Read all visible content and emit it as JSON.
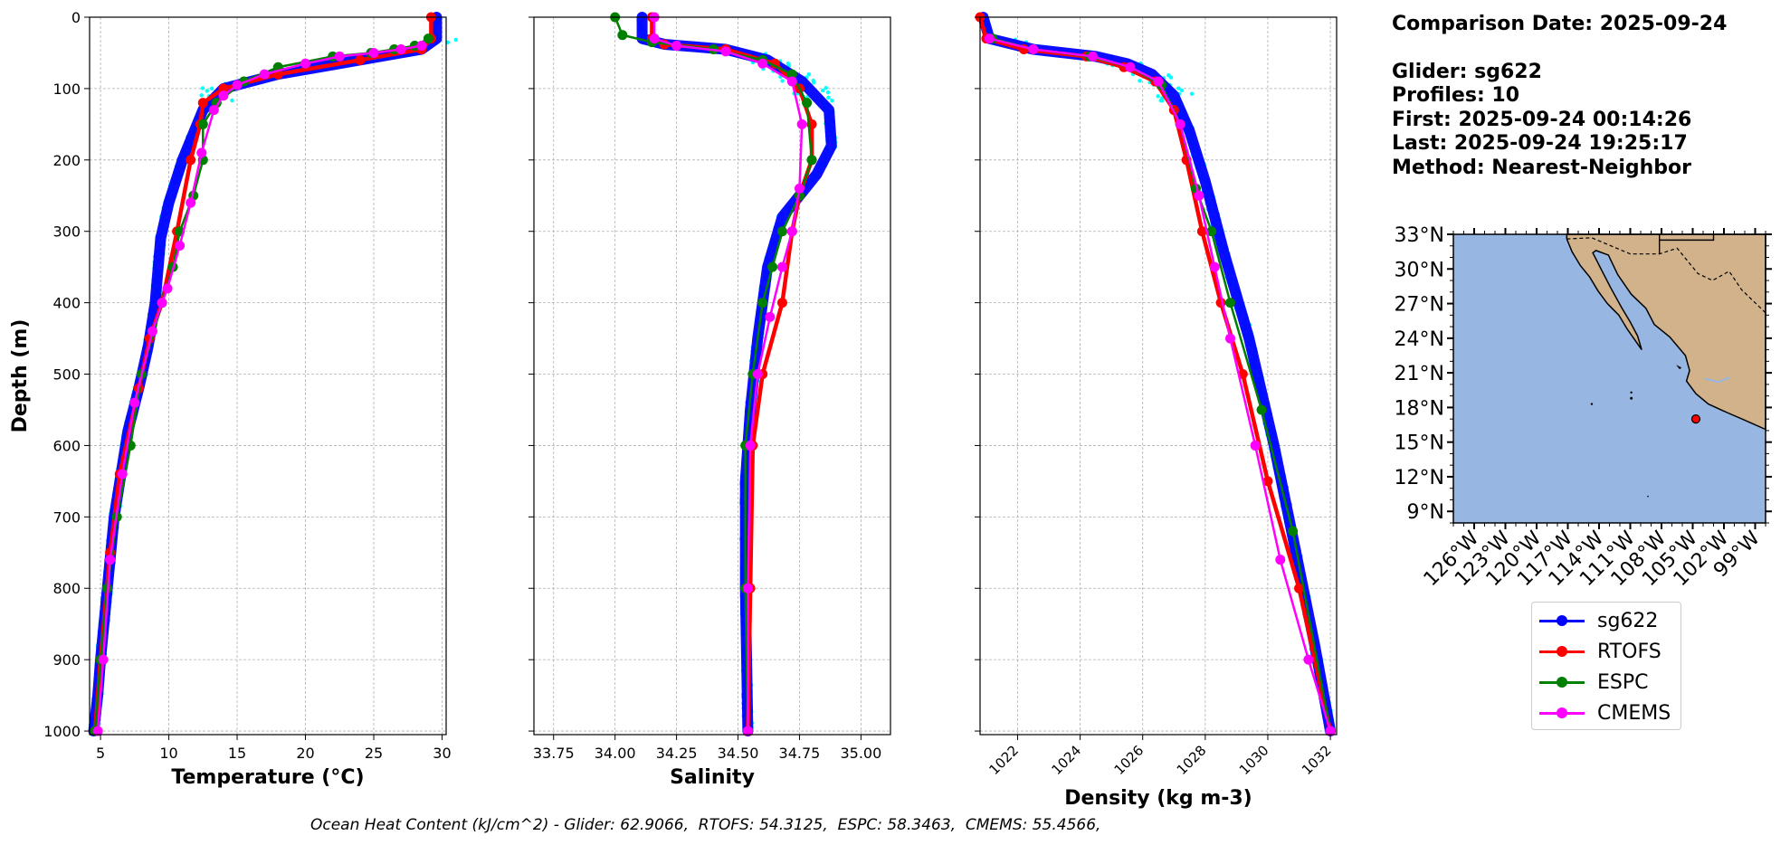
{
  "info": {
    "title": "Comparison Date: 2025-09-24",
    "glider": "Glider: sg622",
    "profiles": "Profiles: 10",
    "first": "First: 2025-09-24 00:14:26",
    "last": "Last: 2025-09-24 19:25:17",
    "method": "Method: Nearest-Neighbor"
  },
  "ohc_text": "Ocean Heat Content (kJ/cm^2) - Glider: 62.9066,  RTOFS: 54.3125,  ESPC: 58.3463,  CMEMS: 55.4566,",
  "colors": {
    "sg622": "#0000ff",
    "RTOFS": "#ff0000",
    "ESPC": "#008000",
    "CMEMS": "#ff00ff",
    "raw": "#00ffff",
    "ocean": "#97b6e1",
    "land": "#d1b28b"
  },
  "legend": [
    {
      "name": "sg622",
      "color": "#0000ff"
    },
    {
      "name": "RTOFS",
      "color": "#ff0000"
    },
    {
      "name": "ESPC",
      "color": "#008000"
    },
    {
      "name": "CMEMS",
      "color": "#ff00ff"
    }
  ],
  "chart_data": [
    {
      "type": "line",
      "xlabel": "Temperature (°C)",
      "ylabel": "Depth (m)",
      "xlim": [
        4.2,
        30.3
      ],
      "ylim": [
        1005,
        0
      ],
      "xticks": [
        5,
        10,
        15,
        20,
        25,
        30
      ],
      "yticks": [
        0,
        100,
        200,
        300,
        400,
        500,
        600,
        700,
        800,
        900,
        1000
      ],
      "grid": true,
      "series": [
        {
          "name": "sg622",
          "x": [
            29.6,
            29.6,
            28.5,
            24,
            18,
            14,
            12.5,
            11,
            10,
            9.4,
            9,
            8.5,
            7.8,
            7,
            6,
            5.5,
            5,
            4.8,
            4.5
          ],
          "y": [
            0,
            30,
            45,
            60,
            80,
            100,
            130,
            200,
            260,
            310,
            400,
            460,
            520,
            580,
            700,
            800,
            900,
            950,
            1000
          ]
        },
        {
          "name": "RTOFS",
          "x": [
            29.2,
            29.2,
            28.5,
            24,
            18,
            14,
            12.5,
            12.3,
            11.6,
            10.6,
            9.5,
            8.6,
            7.8,
            6.4,
            5.7,
            5,
            4.6
          ],
          "y": [
            0,
            30,
            45,
            60,
            80,
            100,
            120,
            150,
            200,
            300,
            400,
            450,
            520,
            640,
            750,
            900,
            1000
          ]
        },
        {
          "name": "ESPC",
          "x": [
            29,
            28,
            26.5,
            24.8,
            22,
            18,
            15.5,
            13.5,
            12.5,
            12.5,
            11.8,
            10.8,
            10.3,
            9.5,
            8,
            7.2,
            6.2,
            5.5,
            5,
            4.6
          ],
          "y": [
            30,
            40,
            45,
            50,
            55,
            70,
            90,
            120,
            150,
            200,
            250,
            300,
            350,
            400,
            500,
            600,
            700,
            800,
            900,
            1000
          ]
        },
        {
          "name": "CMEMS",
          "x": [
            28.5,
            27,
            25,
            22.5,
            20,
            17,
            15,
            14,
            13.3,
            12.4,
            11.6,
            10.8,
            9.9,
            9.5,
            8.8,
            7.5,
            6.6,
            5.7,
            5.2,
            4.8
          ],
          "y": [
            40,
            45,
            50,
            55,
            65,
            80,
            95,
            110,
            130,
            190,
            260,
            320,
            380,
            400,
            440,
            540,
            640,
            760,
            900,
            1000
          ]
        }
      ]
    },
    {
      "type": "line",
      "xlabel": "Salinity",
      "ylabel": "",
      "xlim": [
        33.67,
        35.12
      ],
      "ylim": [
        1005,
        0
      ],
      "xticks": [
        33.75,
        34.0,
        34.25,
        34.5,
        34.75,
        35.0
      ],
      "grid": true,
      "series": [
        {
          "name": "sg622",
          "x": [
            34.11,
            34.11,
            34.2,
            34.45,
            34.62,
            34.76,
            34.87,
            34.88,
            34.82,
            34.68,
            34.62,
            34.58,
            34.55,
            34.53,
            34.53,
            34.54
          ],
          "y": [
            0,
            30,
            38,
            45,
            60,
            90,
            130,
            180,
            220,
            280,
            350,
            450,
            550,
            650,
            800,
            1000
          ]
        },
        {
          "name": "RTOFS",
          "x": [
            34.15,
            34.15,
            34.2,
            34.45,
            34.65,
            34.75,
            34.8,
            34.8,
            34.75,
            34.72,
            34.68,
            34.6,
            34.56,
            34.55,
            34.54
          ],
          "y": [
            0,
            30,
            38,
            45,
            65,
            100,
            150,
            200,
            250,
            300,
            400,
            500,
            600,
            800,
            1000
          ]
        },
        {
          "name": "ESPC",
          "x": [
            34.0,
            34.03,
            34.15,
            34.4,
            34.6,
            34.72,
            34.78,
            34.8,
            34.75,
            34.68,
            34.64,
            34.6,
            34.56,
            34.53,
            34.53,
            34.54
          ],
          "y": [
            0,
            25,
            35,
            45,
            60,
            80,
            120,
            200,
            250,
            300,
            350,
            400,
            500,
            600,
            800,
            1000
          ]
        },
        {
          "name": "CMEMS",
          "x": [
            34.16,
            34.16,
            34.25,
            34.45,
            34.6,
            34.72,
            34.76,
            34.75,
            34.72,
            34.68,
            34.63,
            34.58,
            34.55,
            34.54,
            34.54
          ],
          "y": [
            0,
            30,
            40,
            48,
            65,
            90,
            150,
            240,
            300,
            350,
            420,
            500,
            600,
            800,
            1000
          ]
        }
      ]
    },
    {
      "type": "line",
      "xlabel": "Density (kg m-3)",
      "ylabel": "",
      "xlim": [
        1020.8,
        1032.2
      ],
      "ylim": [
        1005,
        0
      ],
      "xticks": [
        1022,
        1024,
        1026,
        1028,
        1030,
        1032
      ],
      "grid": true,
      "series": [
        {
          "name": "sg622",
          "x": [
            1020.9,
            1021.1,
            1022.5,
            1024.5,
            1025.5,
            1026.3,
            1027,
            1027.5,
            1028,
            1028.6,
            1029.4,
            1030.2,
            1030.9,
            1031.5,
            1032
          ],
          "y": [
            0,
            30,
            45,
            55,
            65,
            80,
            110,
            160,
            230,
            330,
            450,
            600,
            750,
            880,
            1000
          ]
        },
        {
          "name": "RTOFS",
          "x": [
            1020.8,
            1021.0,
            1022.2,
            1024.2,
            1025.4,
            1026.4,
            1027,
            1027.4,
            1027.9,
            1028.5,
            1029.2,
            1030,
            1031,
            1032
          ],
          "y": [
            0,
            30,
            45,
            55,
            70,
            90,
            130,
            200,
            300,
            400,
            500,
            650,
            800,
            1000
          ]
        },
        {
          "name": "ESPC",
          "x": [
            1021.2,
            1022.5,
            1024.3,
            1025.6,
            1026.6,
            1027.2,
            1027.7,
            1028.2,
            1028.8,
            1029.8,
            1030.8,
            1032
          ],
          "y": [
            30,
            45,
            55,
            70,
            95,
            150,
            240,
            300,
            400,
            550,
            720,
            1000
          ]
        },
        {
          "name": "CMEMS",
          "x": [
            1021.1,
            1022.5,
            1024.4,
            1025.6,
            1026.5,
            1027.2,
            1027.8,
            1028.3,
            1028.8,
            1029.6,
            1030.4,
            1031.3,
            1032
          ],
          "y": [
            30,
            45,
            55,
            70,
            90,
            150,
            250,
            350,
            450,
            600,
            760,
            900,
            1000
          ]
        }
      ]
    },
    {
      "type": "map",
      "lat_range": [
        8,
        33
      ],
      "lon_range": [
        -128,
        -98
      ],
      "yticks": [
        "9°N",
        "12°N",
        "15°N",
        "18°N",
        "21°N",
        "24°N",
        "27°N",
        "30°N",
        "33°N"
      ],
      "xticks": [
        "126°W",
        "123°W",
        "120°W",
        "117°W",
        "114°W",
        "111°W",
        "108°W",
        "105°W",
        "102°W",
        "99°W"
      ],
      "glider_position": {
        "lon": -104.7,
        "lat": 17.0
      }
    }
  ]
}
